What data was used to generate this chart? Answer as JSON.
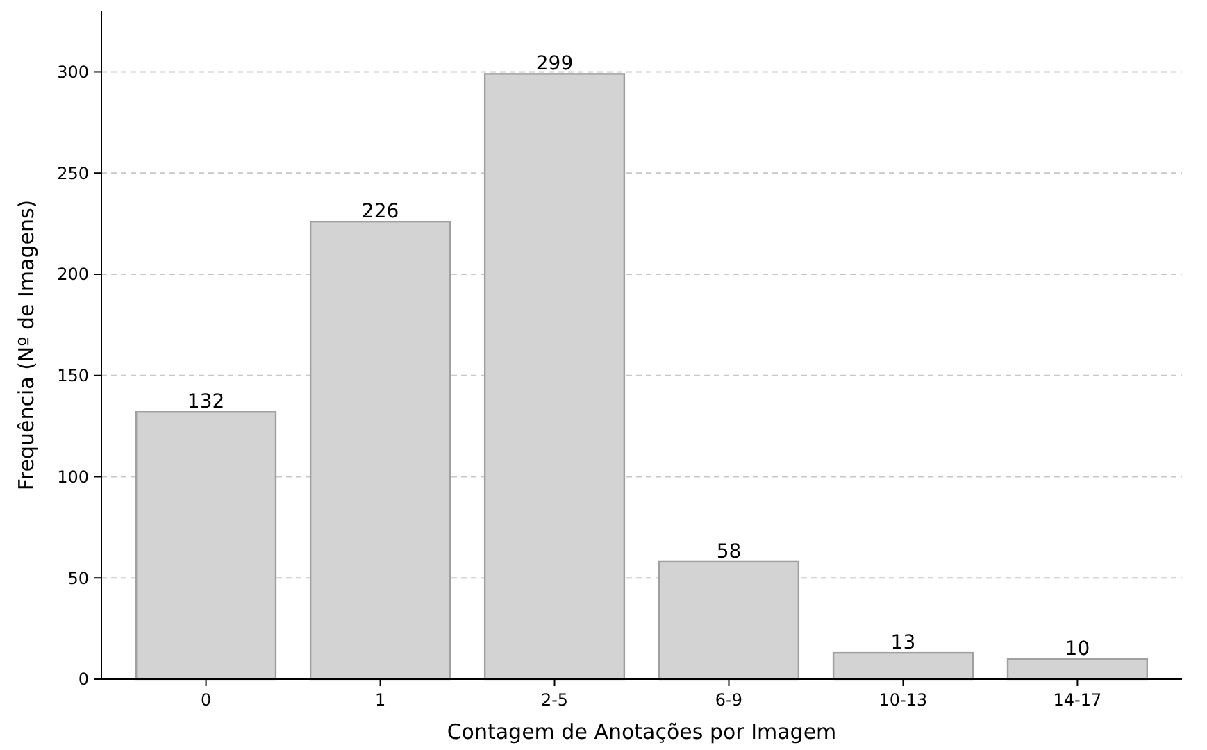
{
  "chart_data": {
    "type": "bar",
    "xlabel": "Contagem de Anotações por Imagem",
    "ylabel": "Frequência (Nº de Imagens)",
    "categories": [
      "0",
      "1",
      "2-5",
      "6-9",
      "10-13",
      "14-17"
    ],
    "values": [
      132,
      226,
      299,
      58,
      13,
      10
    ],
    "color": "#d3d3d3",
    "ylim": [
      0,
      330
    ],
    "yticks": [
      0,
      50,
      100,
      150,
      200,
      250,
      300
    ],
    "grid": "y",
    "data_labels": true
  }
}
